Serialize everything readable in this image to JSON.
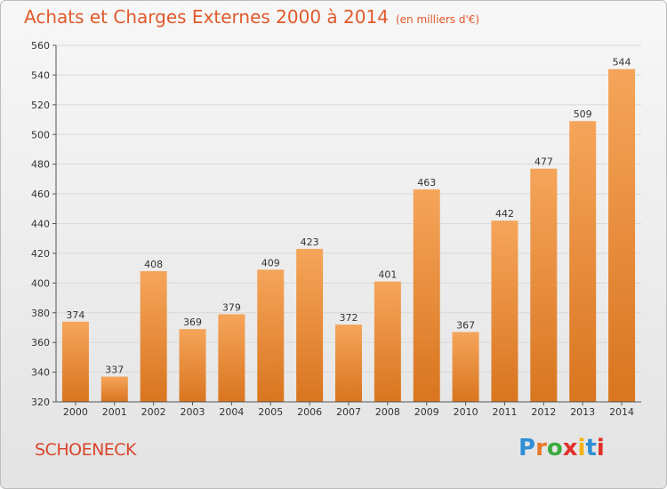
{
  "title": "Achats et Charges Externes 2000 à 2014",
  "unit": "(en milliers d'€)",
  "commune": "SCHOENECK",
  "logo": {
    "text": "Proxiti",
    "colors": [
      "#2f8fd6",
      "#e8792b",
      "#3cab3f",
      "#e0302b",
      "#f2b20f",
      "#2f8fd6",
      "#e0302b"
    ]
  },
  "colors": {
    "bar_top": "#f5a55a",
    "bar_bottom": "#d9751f",
    "grid": "#d8d8d8",
    "axis": "#555555"
  },
  "chart_data": {
    "type": "bar",
    "categories": [
      "2000",
      "2001",
      "2002",
      "2003",
      "2004",
      "2005",
      "2006",
      "2007",
      "2008",
      "2009",
      "2010",
      "2011",
      "2012",
      "2013",
      "2014"
    ],
    "values": [
      374,
      337,
      408,
      369,
      379,
      409,
      423,
      372,
      401,
      463,
      367,
      442,
      477,
      509,
      544
    ],
    "ylim": [
      320,
      560
    ],
    "yticks": [
      320,
      340,
      360,
      380,
      400,
      420,
      440,
      460,
      480,
      500,
      520,
      540,
      560
    ],
    "grid": true,
    "xlabel": "",
    "ylabel": ""
  }
}
